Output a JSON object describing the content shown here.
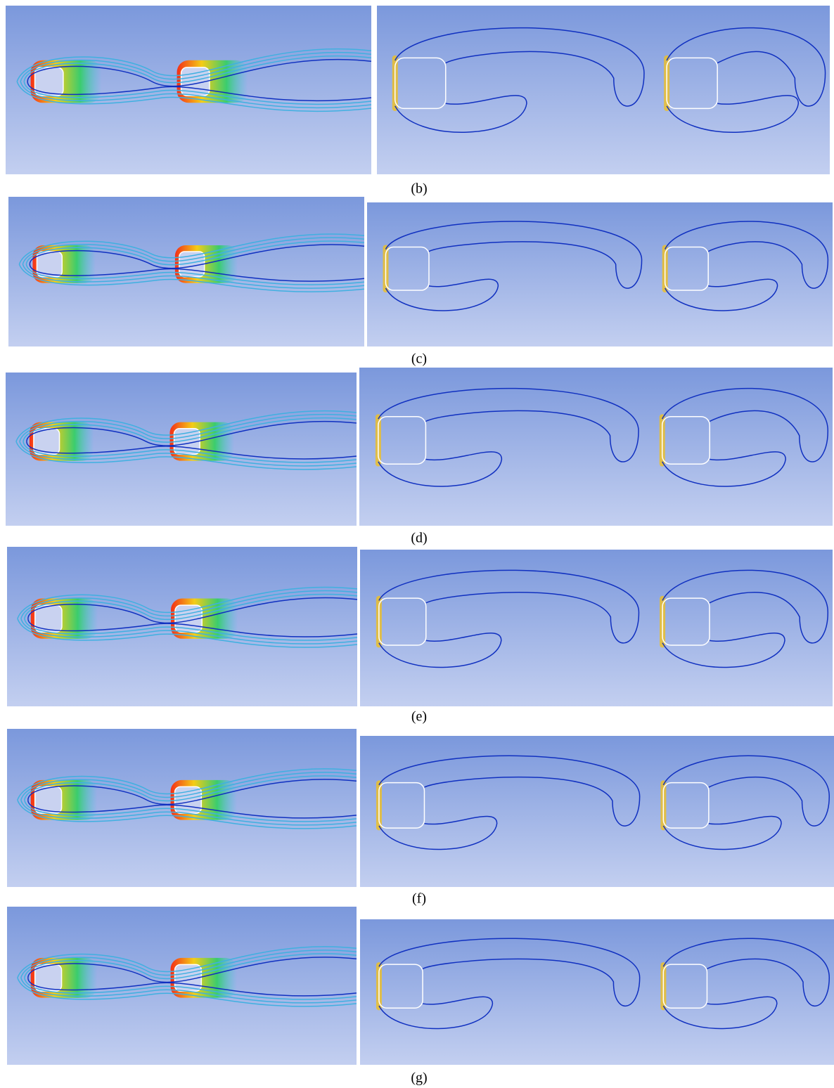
{
  "figure": {
    "panels": [
      {
        "caption": "(b)"
      },
      {
        "caption": "(c)"
      },
      {
        "caption": "(d)"
      },
      {
        "caption": "(e)"
      },
      {
        "caption": "(f)"
      },
      {
        "caption": "(g)"
      }
    ]
  }
}
